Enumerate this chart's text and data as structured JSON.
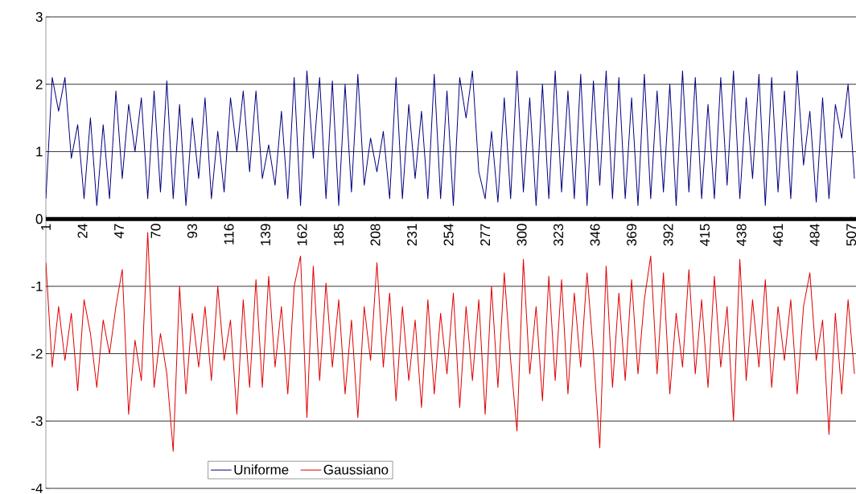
{
  "chart_data": {
    "type": "line",
    "x": [
      1,
      5,
      9,
      13,
      17,
      21,
      25,
      29,
      33,
      37,
      41,
      45,
      49,
      53,
      57,
      61,
      65,
      69,
      73,
      77,
      81,
      85,
      89,
      93,
      97,
      101,
      105,
      109,
      113,
      117,
      121,
      125,
      129,
      133,
      137,
      141,
      145,
      149,
      153,
      157,
      161,
      165,
      169,
      173,
      177,
      181,
      185,
      189,
      193,
      197,
      201,
      205,
      209,
      213,
      217,
      221,
      225,
      229,
      233,
      237,
      241,
      245,
      249,
      253,
      257,
      261,
      265,
      269,
      273,
      277,
      281,
      285,
      289,
      293,
      297,
      301,
      305,
      309,
      313,
      317,
      321,
      325,
      329,
      333,
      337,
      341,
      345,
      349,
      353,
      357,
      361,
      365,
      369,
      373,
      377,
      381,
      385,
      389,
      393,
      397,
      401,
      405,
      409,
      413,
      417,
      421,
      425,
      429,
      433,
      437,
      441,
      445,
      449,
      453,
      457,
      461,
      465,
      469,
      473,
      477,
      481,
      485,
      489,
      493,
      497,
      501,
      505,
      509
    ],
    "series": [
      {
        "name": "Uniforme",
        "color": "#000080",
        "values": [
          0.3,
          2.1,
          1.6,
          2.1,
          0.9,
          1.4,
          0.3,
          1.5,
          0.2,
          1.4,
          0.3,
          1.9,
          0.6,
          1.7,
          1.0,
          1.8,
          0.3,
          1.9,
          0.4,
          2.05,
          0.3,
          1.7,
          0.2,
          1.5,
          0.6,
          1.8,
          0.3,
          1.3,
          0.4,
          1.8,
          1.0,
          1.9,
          0.7,
          1.9,
          0.6,
          1.1,
          0.5,
          1.6,
          0.3,
          2.1,
          0.2,
          2.2,
          0.9,
          2.1,
          0.3,
          2.05,
          0.2,
          2.0,
          0.4,
          2.15,
          0.5,
          1.2,
          0.7,
          1.3,
          0.3,
          2.1,
          0.3,
          1.7,
          0.6,
          1.6,
          0.3,
          2.15,
          0.3,
          1.9,
          0.2,
          2.1,
          1.5,
          2.2,
          0.7,
          0.3,
          1.3,
          0.25,
          1.8,
          0.3,
          2.2,
          0.4,
          1.8,
          0.2,
          2.0,
          0.3,
          2.2,
          0.4,
          1.9,
          0.3,
          2.15,
          0.2,
          2.05,
          0.5,
          2.2,
          0.3,
          2.1,
          0.3,
          1.8,
          0.2,
          2.15,
          0.3,
          1.9,
          0.4,
          2.0,
          0.2,
          2.2,
          0.4,
          2.1,
          0.3,
          1.7,
          0.3,
          2.1,
          0.5,
          2.2,
          0.3,
          1.8,
          0.6,
          2.15,
          0.2,
          2.1,
          0.4,
          1.9,
          0.3,
          2.2,
          0.8,
          1.6,
          0.25,
          1.8,
          0.3,
          1.7,
          1.2,
          2.0,
          0.6
        ]
      },
      {
        "name": "Gaussiano",
        "color": "#e00000",
        "values": [
          -0.65,
          -2.2,
          -1.3,
          -2.1,
          -1.4,
          -2.55,
          -1.2,
          -1.7,
          -2.5,
          -1.5,
          -2.0,
          -1.3,
          -0.75,
          -2.9,
          -1.8,
          -2.4,
          -0.2,
          -2.5,
          -1.7,
          -2.3,
          -3.45,
          -1.0,
          -2.6,
          -1.4,
          -2.2,
          -1.3,
          -2.4,
          -1.0,
          -2.1,
          -1.5,
          -2.9,
          -1.2,
          -2.5,
          -0.9,
          -2.5,
          -0.85,
          -2.2,
          -1.3,
          -2.6,
          -1.0,
          -0.55,
          -2.95,
          -0.7,
          -2.4,
          -0.95,
          -2.2,
          -1.2,
          -2.6,
          -1.5,
          -2.95,
          -1.3,
          -2.1,
          -0.65,
          -2.2,
          -1.1,
          -2.7,
          -1.3,
          -2.4,
          -1.5,
          -2.8,
          -1.2,
          -2.6,
          -1.4,
          -2.3,
          -1.1,
          -2.8,
          -1.3,
          -2.4,
          -1.2,
          -2.9,
          -1.0,
          -2.5,
          -0.8,
          -2.1,
          -3.15,
          -0.6,
          -2.3,
          -1.3,
          -2.7,
          -0.85,
          -2.4,
          -0.9,
          -2.6,
          -1.1,
          -2.2,
          -0.8,
          -2.0,
          -3.4,
          -0.7,
          -2.5,
          -1.1,
          -2.4,
          -0.9,
          -2.3,
          -1.2,
          -0.55,
          -2.3,
          -0.8,
          -2.6,
          -1.4,
          -2.2,
          -0.75,
          -2.3,
          -1.2,
          -2.5,
          -0.85,
          -2.2,
          -1.3,
          -3.0,
          -0.6,
          -2.4,
          -1.2,
          -2.2,
          -0.9,
          -2.5,
          -1.3,
          -2.1,
          -1.2,
          -2.6,
          -1.3,
          -0.8,
          -2.1,
          -1.5,
          -3.2,
          -1.4,
          -2.6,
          -1.2,
          -2.3
        ]
      }
    ],
    "xlim": [
      1,
      510
    ],
    "xticks": [
      1,
      24,
      47,
      70,
      93,
      116,
      139,
      162,
      185,
      208,
      231,
      254,
      277,
      300,
      323,
      346,
      369,
      392,
      415,
      438,
      461,
      484,
      507
    ],
    "ylim": [
      -4,
      3
    ],
    "yticks": [
      -4,
      -3,
      -2,
      -1,
      0,
      1,
      2,
      3
    ],
    "grid": "y",
    "legend": "bottom left"
  }
}
